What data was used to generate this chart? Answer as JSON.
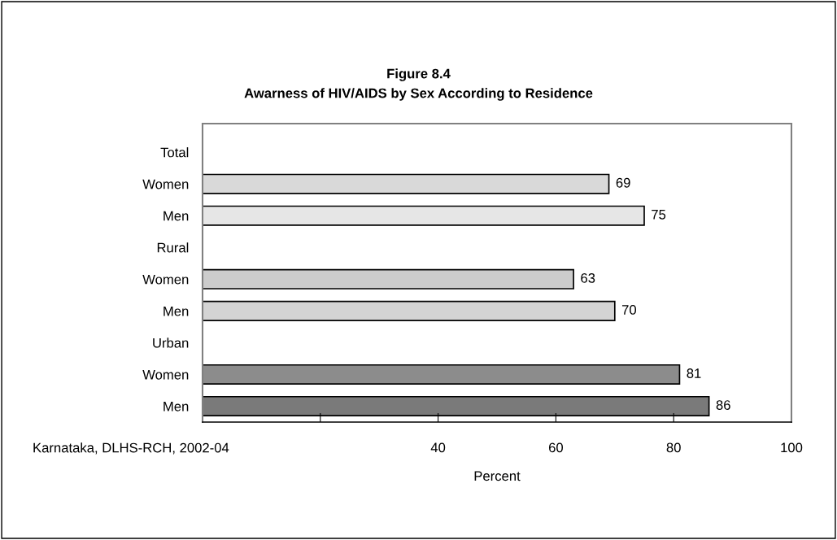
{
  "chart_data": {
    "type": "bar",
    "orientation": "horizontal",
    "title": "Figure 8.4",
    "subtitle": "Awarness of HIV/AIDS by Sex According to Residence",
    "categories": [
      "Total",
      "Women",
      "Men",
      "Rural",
      "Women",
      "Men",
      "Urban",
      "Women",
      "Men"
    ],
    "values": [
      null,
      69,
      75,
      null,
      63,
      70,
      null,
      81,
      86
    ],
    "colors": [
      "#ffffff",
      "#d9d9d9",
      "#e6e6e6",
      "#ffffff",
      "#cccccc",
      "#d4d4d4",
      "#ffffff",
      "#8c8c8c",
      "#7a7a7a"
    ],
    "data_labels": true,
    "xlabel": "Percent",
    "xlim": [
      0,
      100
    ],
    "xticks": [
      {
        "value": 0,
        "label": null
      },
      {
        "value": 20,
        "label": null
      },
      40,
      60,
      80,
      100
    ],
    "annotations": [
      "Karnataka, DLHS-RCH, 2002-04"
    ],
    "grid": false,
    "legend": false
  }
}
